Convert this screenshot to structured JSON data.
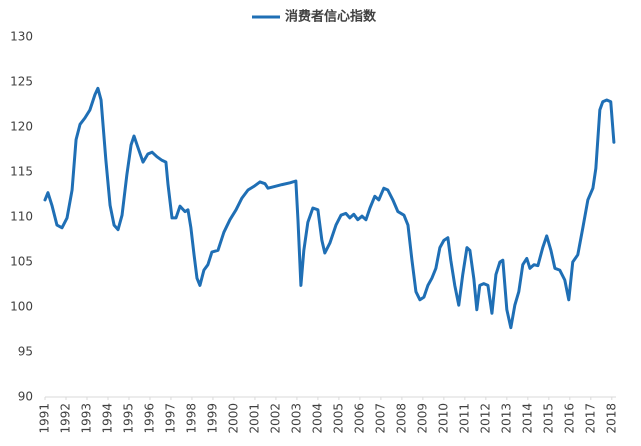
{
  "chart_data": {
    "type": "line",
    "x": [
      1991.0,
      1991.14,
      1991.33,
      1991.57,
      1991.81,
      1992.05,
      1992.29,
      1992.48,
      1992.67,
      1992.9,
      1993.14,
      1993.38,
      1993.52,
      1993.67,
      1993.9,
      1994.1,
      1994.29,
      1994.48,
      1994.67,
      1994.9,
      1995.1,
      1995.24,
      1995.43,
      1995.67,
      1995.9,
      1996.1,
      1996.33,
      1996.57,
      1996.76,
      1996.86,
      1997.05,
      1997.24,
      1997.43,
      1997.67,
      1997.81,
      1997.95,
      1998.1,
      1998.24,
      1998.38,
      1998.57,
      1998.76,
      1998.95,
      1999.24,
      1999.52,
      1999.81,
      2000.1,
      2000.38,
      2000.67,
      2000.95,
      2001.24,
      2001.48,
      2001.62,
      2001.95,
      2002.29,
      2002.67,
      2002.95,
      2003.05,
      2003.19,
      2003.33,
      2003.52,
      2003.76,
      2004.0,
      2004.19,
      2004.33,
      2004.57,
      2004.86,
      2005.1,
      2005.33,
      2005.52,
      2005.71,
      2005.9,
      2006.1,
      2006.29,
      2006.48,
      2006.71,
      2006.9,
      2007.14,
      2007.33,
      2007.57,
      2007.81,
      2008.1,
      2008.29,
      2008.48,
      2008.67,
      2008.86,
      2009.05,
      2009.24,
      2009.43,
      2009.62,
      2009.81,
      2010.0,
      2010.19,
      2010.33,
      2010.52,
      2010.71,
      2010.9,
      2011.1,
      2011.24,
      2011.43,
      2011.57,
      2011.71,
      2011.9,
      2012.1,
      2012.29,
      2012.48,
      2012.67,
      2012.81,
      2013.0,
      2013.19,
      2013.38,
      2013.57,
      2013.76,
      2013.95,
      2014.1,
      2014.29,
      2014.48,
      2014.71,
      2014.9,
      2015.1,
      2015.29,
      2015.52,
      2015.76,
      2015.95,
      2016.14,
      2016.38,
      2016.62,
      2016.86,
      2017.1,
      2017.24,
      2017.43,
      2017.57,
      2017.76,
      2017.95,
      2018.1
    ],
    "series": [
      {
        "name": "消费者信心指数",
        "color": "#1f6fb5",
        "values": [
          111.9,
          112.7,
          111.3,
          109.1,
          108.8,
          109.9,
          113.0,
          118.6,
          120.3,
          121.0,
          121.9,
          123.6,
          124.3,
          123.0,
          116.3,
          111.3,
          109.1,
          108.6,
          110.2,
          114.7,
          118.0,
          119.0,
          117.7,
          116.1,
          117.0,
          117.2,
          116.7,
          116.3,
          116.1,
          113.6,
          109.9,
          109.9,
          111.2,
          110.6,
          110.8,
          108.8,
          105.8,
          103.2,
          102.4,
          104.1,
          104.7,
          106.1,
          106.3,
          108.3,
          109.7,
          110.8,
          112.1,
          113.0,
          113.4,
          113.9,
          113.7,
          113.2,
          113.4,
          113.6,
          113.8,
          114.0,
          109.7,
          102.4,
          106.3,
          109.4,
          111.0,
          110.8,
          107.4,
          106.0,
          107.1,
          109.1,
          110.2,
          110.4,
          109.9,
          110.3,
          109.7,
          110.1,
          109.7,
          111.0,
          112.3,
          111.9,
          113.2,
          113.0,
          111.9,
          110.6,
          110.2,
          109.1,
          105.2,
          101.7,
          100.8,
          101.1,
          102.4,
          103.2,
          104.3,
          106.6,
          107.4,
          107.7,
          105.2,
          102.4,
          100.2,
          103.6,
          106.6,
          106.3,
          103.1,
          99.7,
          102.4,
          102.6,
          102.4,
          99.3,
          103.6,
          105.0,
          105.2,
          99.7,
          97.7,
          100.2,
          101.7,
          104.7,
          105.4,
          104.3,
          104.7,
          104.6,
          106.6,
          107.9,
          106.3,
          104.3,
          104.1,
          103.0,
          100.8,
          105.0,
          105.8,
          108.8,
          111.9,
          113.2,
          115.4,
          121.9,
          122.8,
          123.0,
          122.8,
          118.3
        ]
      }
    ],
    "xlim": [
      1991,
      2018.2
    ],
    "xticks": [
      1991,
      1992,
      1993,
      1994,
      1995,
      1996,
      1997,
      1998,
      1999,
      2000,
      2001,
      2002,
      2003,
      2004,
      2005,
      2006,
      2007,
      2008,
      2009,
      2010,
      2011,
      2012,
      2013,
      2014,
      2015,
      2016,
      2017,
      2018
    ],
    "ylim": [
      90,
      130
    ],
    "yticks": [
      90,
      95,
      100,
      105,
      110,
      115,
      120,
      125,
      130
    ],
    "grid": false,
    "legend": "top"
  }
}
